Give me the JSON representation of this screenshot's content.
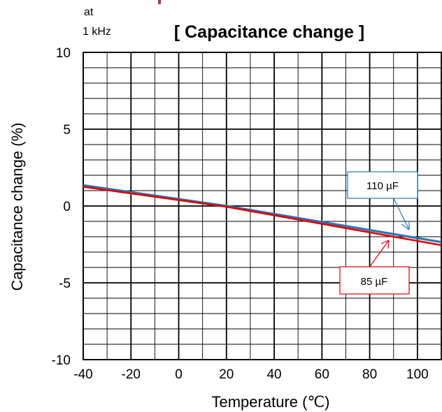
{
  "chart_data": {
    "type": "line",
    "title": "[ Capacitance change ]",
    "condition_lines": [
      "at",
      "1 kHz"
    ],
    "xlabel": "Temperature (℃)",
    "ylabel": "Capacitance change (%)",
    "xlim": [
      -40,
      110
    ],
    "ylim": [
      -10,
      10
    ],
    "x_ticks": [
      -40,
      -20,
      0,
      20,
      40,
      60,
      80,
      100
    ],
    "y_ticks": [
      -10,
      -5,
      0,
      5,
      10
    ],
    "x_tick_labels": [
      "-40",
      "-20",
      "0",
      "20",
      "40",
      "60",
      "80",
      "100"
    ],
    "y_tick_labels": [
      "-10",
      "-5",
      "0",
      "5",
      "10"
    ],
    "x_minor_step": 10,
    "y_minor_step": 1,
    "grid": true,
    "series": [
      {
        "name": "110 µF",
        "color": "#2e75b6",
        "x": [
          -40,
          20,
          110
        ],
        "y": [
          1.35,
          0.0,
          -2.35
        ]
      },
      {
        "name": "85 µF",
        "color": "#e00000",
        "x": [
          -40,
          20,
          110
        ],
        "y": [
          1.25,
          -0.05,
          -2.55
        ]
      }
    ],
    "annotations": [
      {
        "text": "110 µF",
        "color": "#2e75b6"
      },
      {
        "text": "85 µF",
        "color": "#e00000"
      }
    ]
  }
}
